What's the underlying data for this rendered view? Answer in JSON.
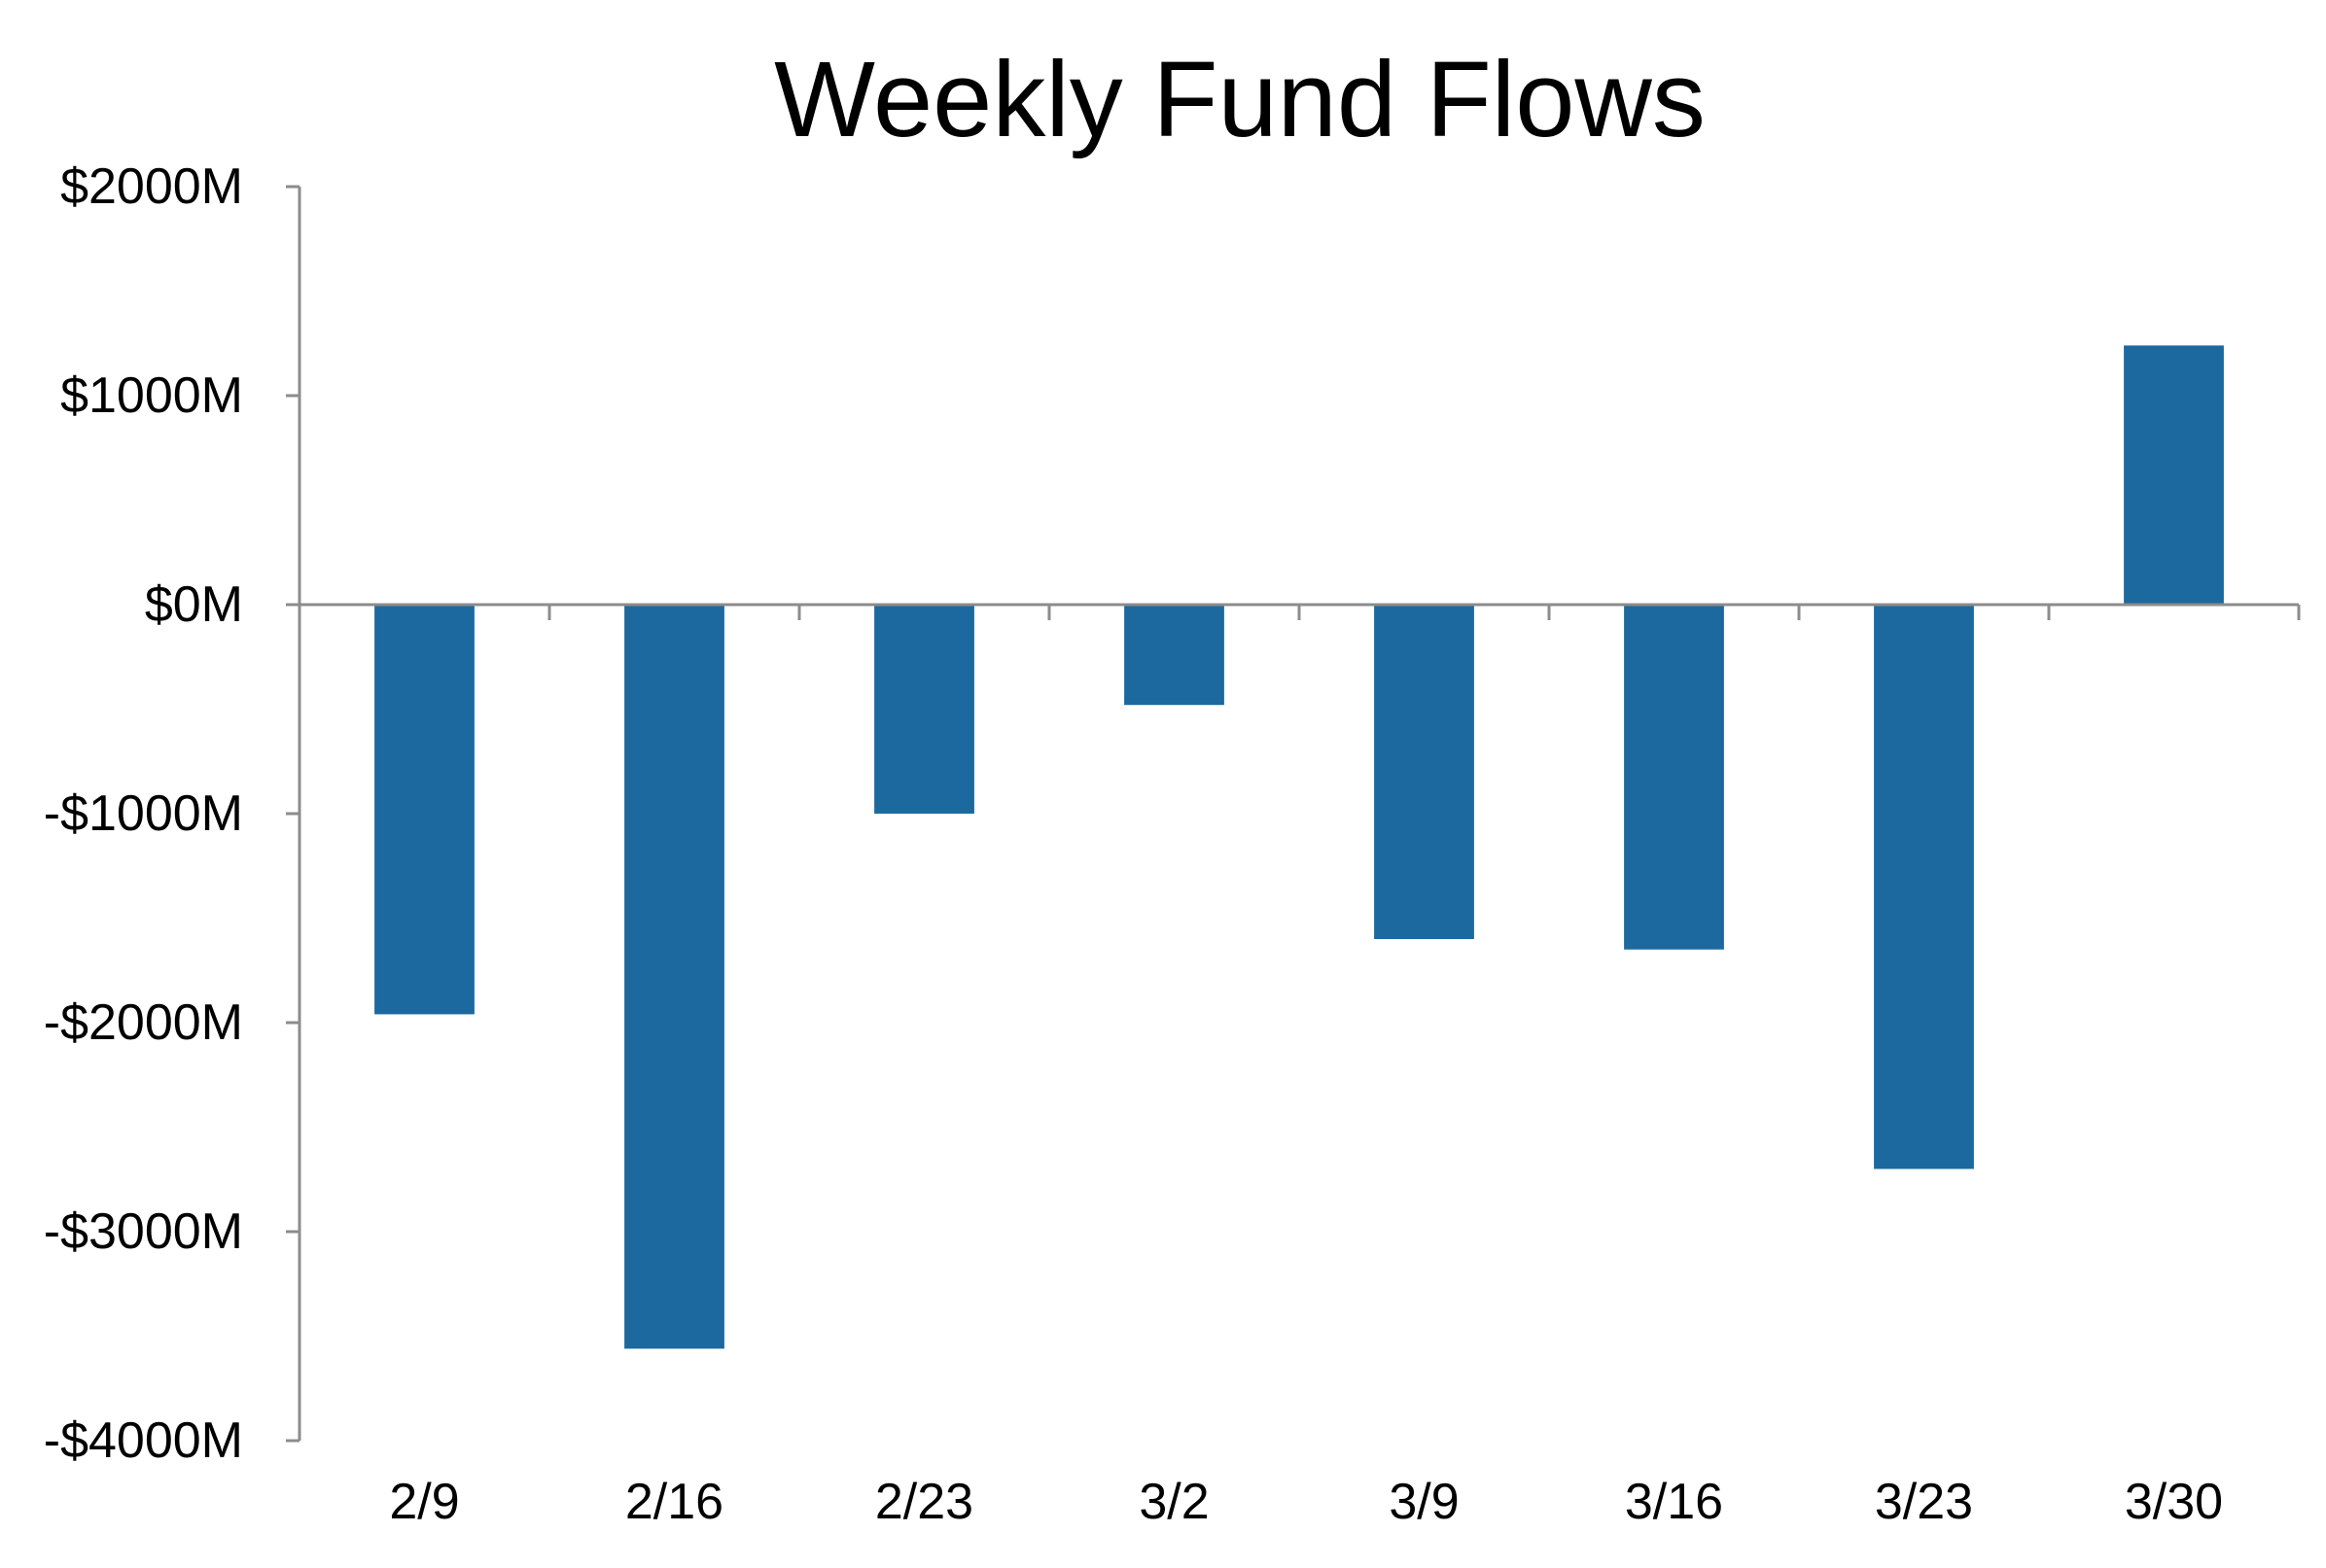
{
  "chart_data": {
    "type": "bar",
    "title": "Weekly Fund Flows",
    "xlabel": "",
    "ylabel": "",
    "categories": [
      "2/9",
      "2/16",
      "2/23",
      "3/2",
      "3/9",
      "3/16",
      "3/23",
      "3/30"
    ],
    "series": [
      {
        "values": [
          -1960,
          -3560,
          -1000,
          -480,
          -1600,
          -1650,
          -2700,
          1240
        ],
        "color": "#1b699e"
      }
    ],
    "ylim": [
      -4000,
      2000
    ],
    "yticks": [
      2000,
      1000,
      0,
      -1000,
      -2000,
      -3000,
      -4000
    ],
    "ytick_labels": [
      "$2000M",
      "$1000M",
      "$0M",
      "-$1000M",
      "-$2000M",
      "-$3000M",
      "-$4000M"
    ],
    "grid": false,
    "legend": "none",
    "colors": {
      "bar": "#1b699e",
      "axis": "#8c8c8c",
      "text": "#000000"
    }
  }
}
